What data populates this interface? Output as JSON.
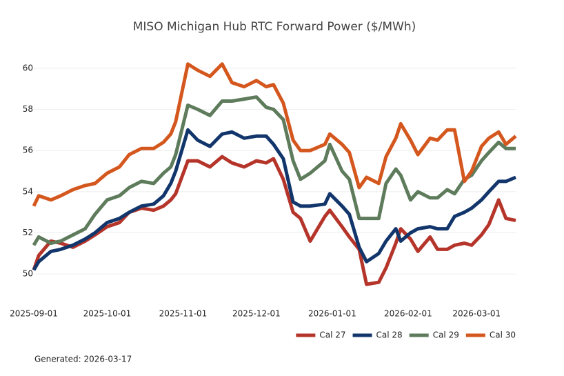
{
  "chart_data": {
    "type": "line",
    "title": "MISO Michigan Hub RTC Forward Power ($/MWh)",
    "footer": "Generated: 2026-03-17",
    "x": [
      "2025-09-01",
      "2025-09-03",
      "2025-09-08",
      "2025-09-12",
      "2025-09-17",
      "2025-09-22",
      "2025-09-26",
      "2025-10-01",
      "2025-10-06",
      "2025-10-10",
      "2025-10-15",
      "2025-10-20",
      "2025-10-24",
      "2025-10-27",
      "2025-10-29",
      "2025-11-03",
      "2025-11-07",
      "2025-11-12",
      "2025-11-17",
      "2025-11-21",
      "2025-11-26",
      "2025-12-01",
      "2025-12-05",
      "2025-12-08",
      "2025-12-12",
      "2025-12-16",
      "2025-12-19",
      "2025-12-23",
      "2025-12-29",
      "2025-12-31",
      "2026-01-05",
      "2026-01-08",
      "2026-01-12",
      "2026-01-15",
      "2026-01-20",
      "2026-01-23",
      "2026-01-27",
      "2026-01-29",
      "2026-02-02",
      "2026-02-05",
      "2026-02-10",
      "2026-02-13",
      "2026-02-17",
      "2026-02-20",
      "2026-02-24",
      "2026-02-27",
      "2026-03-03",
      "2026-03-06",
      "2026-03-10",
      "2026-03-13",
      "2026-03-17"
    ],
    "series": [
      {
        "name": "Cal 27",
        "color": "#b5352a",
        "values": [
          50.2,
          50.9,
          51.6,
          51.5,
          51.3,
          51.6,
          51.9,
          52.3,
          52.5,
          53.0,
          53.2,
          53.1,
          53.3,
          53.6,
          53.9,
          55.5,
          55.5,
          55.2,
          55.7,
          55.4,
          55.2,
          55.5,
          55.4,
          55.6,
          54.6,
          53.0,
          52.7,
          51.6,
          52.8,
          53.1,
          52.3,
          51.8,
          51.2,
          49.5,
          49.6,
          50.3,
          51.5,
          52.2,
          51.7,
          51.1,
          51.8,
          51.2,
          51.2,
          51.4,
          51.5,
          51.4,
          51.9,
          52.4,
          53.6,
          52.7,
          52.6
        ]
      },
      {
        "name": "Cal 28",
        "color": "#12366b",
        "values": [
          50.2,
          50.6,
          51.1,
          51.2,
          51.4,
          51.7,
          52.0,
          52.5,
          52.7,
          53.0,
          53.3,
          53.4,
          53.8,
          54.4,
          55.0,
          57.0,
          56.5,
          56.2,
          56.8,
          56.9,
          56.6,
          56.7,
          56.7,
          56.3,
          55.6,
          53.5,
          53.3,
          53.3,
          53.4,
          53.9,
          53.3,
          52.9,
          51.3,
          50.6,
          51.0,
          51.6,
          52.2,
          51.6,
          52.0,
          52.2,
          52.3,
          52.2,
          52.2,
          52.8,
          53.0,
          53.2,
          53.6,
          54.0,
          54.5,
          54.5,
          54.7
        ]
      },
      {
        "name": "Cal 29",
        "color": "#5e7b5c",
        "values": [
          51.4,
          51.8,
          51.5,
          51.6,
          51.9,
          52.2,
          52.9,
          53.6,
          53.8,
          54.2,
          54.5,
          54.4,
          54.9,
          55.2,
          55.8,
          58.2,
          58.0,
          57.7,
          58.4,
          58.4,
          58.5,
          58.6,
          58.1,
          58.0,
          57.5,
          55.5,
          54.6,
          54.9,
          55.5,
          56.3,
          55.0,
          54.6,
          52.7,
          52.7,
          52.7,
          54.4,
          55.1,
          54.8,
          53.6,
          54.0,
          53.7,
          53.7,
          54.1,
          53.9,
          54.6,
          54.8,
          55.5,
          55.9,
          56.4,
          56.1,
          56.1
        ]
      },
      {
        "name": "Cal 30",
        "color": "#d4571e",
        "values": [
          53.3,
          53.8,
          53.6,
          53.8,
          54.1,
          54.3,
          54.4,
          54.9,
          55.2,
          55.8,
          56.1,
          56.1,
          56.4,
          56.8,
          57.4,
          60.2,
          59.9,
          59.6,
          60.2,
          59.3,
          59.1,
          59.4,
          59.1,
          59.2,
          58.3,
          56.5,
          56.0,
          56.0,
          56.3,
          56.8,
          56.3,
          55.9,
          54.2,
          54.7,
          54.4,
          55.7,
          56.6,
          57.3,
          56.5,
          55.8,
          56.6,
          56.5,
          57.0,
          57.0,
          54.5,
          55.0,
          56.2,
          56.6,
          56.9,
          56.3,
          56.7
        ]
      }
    ],
    "xlim": [
      "2025-09-01",
      "2026-03-17"
    ],
    "xticks": [
      "2025-09-01",
      "2025-10-01",
      "2025-11-01",
      "2025-12-01",
      "2026-01-01",
      "2026-02-01",
      "2026-03-01"
    ],
    "ylim": [
      48.6,
      61.3
    ],
    "yticks": [
      50,
      52,
      54,
      56,
      58,
      60
    ],
    "grid": true,
    "legend": "lower right"
  }
}
